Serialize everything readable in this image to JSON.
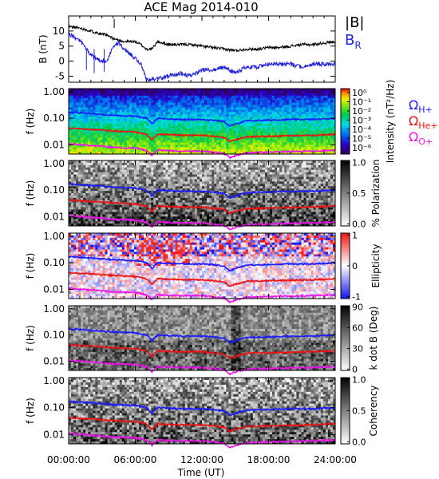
{
  "title": "ACE Mag 2014-010",
  "xlabel": "Time (UT)",
  "x_ticks": [
    "00:00:00",
    "06:00:00",
    "12:00:00",
    "18:00:00",
    "24:00:00"
  ],
  "legend": {
    "panel1": [
      {
        "label": "|B|",
        "color": "#000000"
      },
      {
        "label": "B",
        "sub": "R",
        "color": "#2222dd"
      }
    ],
    "panel2": [
      {
        "label": "Ω",
        "sub": "H+",
        "color": "#1a1aff"
      },
      {
        "label": "Ω",
        "sub": "He+",
        "color": "#ee1111"
      },
      {
        "label": "Ω",
        "sub": "O+",
        "color": "#ee11ee"
      }
    ]
  },
  "colors": {
    "b_total": "#000000",
    "b_r": "#2222dd",
    "omega_h": "#1a1aff",
    "omega_he": "#ee1111",
    "omega_o": "#ee11ee"
  },
  "chart_data": [
    {
      "type": "line",
      "ylabel": "B (nT)",
      "ylim": [
        -7,
        15
      ],
      "y_ticks": [
        "10",
        "5",
        "0",
        "-5"
      ],
      "x": [
        0,
        1,
        2,
        3,
        3.5,
        4,
        4.5,
        5,
        6,
        6.5,
        7,
        7.5,
        8,
        9,
        10,
        11,
        12,
        13,
        14,
        15,
        16,
        17,
        18,
        19,
        20,
        21,
        22,
        23,
        24
      ],
      "series": [
        {
          "name": "|B|",
          "values": [
            11.5,
            11,
            10,
            9,
            8.5,
            7.5,
            7,
            6.5,
            6.5,
            5.5,
            4,
            4,
            6.5,
            5.5,
            5.5,
            5.5,
            5,
            4.5,
            4,
            3.5,
            4,
            4,
            4.5,
            4.5,
            5,
            5.5,
            5.5,
            6,
            6.5
          ]
        },
        {
          "name": "B_R",
          "values": [
            9,
            7,
            2,
            0,
            0,
            5,
            6,
            4,
            1,
            -1,
            -6,
            -6,
            -6,
            -5,
            -4,
            -5,
            -3,
            -3,
            -2,
            -4,
            -2,
            -2,
            -1,
            -1,
            -1,
            -2,
            -1,
            -1,
            -1
          ]
        }
      ]
    },
    {
      "type": "heatmap",
      "ylabel": "f (Hz)",
      "y_ticks": [
        "1.00",
        "0.10",
        "0.01"
      ],
      "colorbar": {
        "label": "Intensity (nT²/Hz)",
        "ticks": [
          "10⁰",
          "10⁻¹",
          "10⁻²",
          "10⁻³",
          "10⁻⁴",
          "10⁻⁵",
          "10⁻⁶"
        ]
      }
    },
    {
      "type": "heatmap",
      "ylabel": "f (Hz)",
      "y_ticks": [
        "1.00",
        "0.10",
        "0.01"
      ],
      "colorbar": {
        "label": "% Polarization",
        "ticks": [
          "1.0",
          "0.5",
          "0.0"
        ]
      }
    },
    {
      "type": "heatmap",
      "ylabel": "f (Hz)",
      "y_ticks": [
        "1.00",
        "0.10",
        "0.01"
      ],
      "colorbar": {
        "label": "Ellipticity",
        "ticks": [
          "1",
          "0",
          "-1"
        ]
      }
    },
    {
      "type": "heatmap",
      "ylabel": "f (Hz)",
      "y_ticks": [
        "1.00",
        "0.10",
        "0.01"
      ],
      "colorbar": {
        "label": "k dot B (Deg)",
        "ticks": [
          "90",
          "60",
          "30",
          "0"
        ]
      }
    },
    {
      "type": "heatmap",
      "ylabel": "f (Hz)",
      "y_ticks": [
        "1.00",
        "0.10",
        "0.01"
      ],
      "colorbar": {
        "label": "Coherency",
        "ticks": [
          "1.0",
          "0.5",
          "0.0"
        ]
      }
    }
  ],
  "gyrofrequency_lines": {
    "x": [
      0,
      2,
      4,
      6,
      7,
      7.5,
      8,
      10,
      12,
      13,
      14,
      14.5,
      16,
      18,
      20,
      22,
      24
    ],
    "omega_h_hz": [
      0.17,
      0.15,
      0.13,
      0.12,
      0.1,
      0.06,
      0.1,
      0.09,
      0.09,
      0.085,
      0.075,
      0.05,
      0.08,
      0.085,
      0.09,
      0.09,
      0.1
    ],
    "omega_he_hz": [
      0.042,
      0.038,
      0.033,
      0.03,
      0.025,
      0.015,
      0.025,
      0.023,
      0.023,
      0.021,
      0.019,
      0.013,
      0.02,
      0.021,
      0.022,
      0.023,
      0.025
    ],
    "omega_o_hz": [
      0.011,
      0.0095,
      0.008,
      0.0075,
      0.0063,
      0.004,
      0.0063,
      0.0058,
      0.0058,
      0.0053,
      0.0047,
      0.0033,
      0.005,
      0.0053,
      0.0056,
      0.0058,
      0.0063
    ]
  }
}
